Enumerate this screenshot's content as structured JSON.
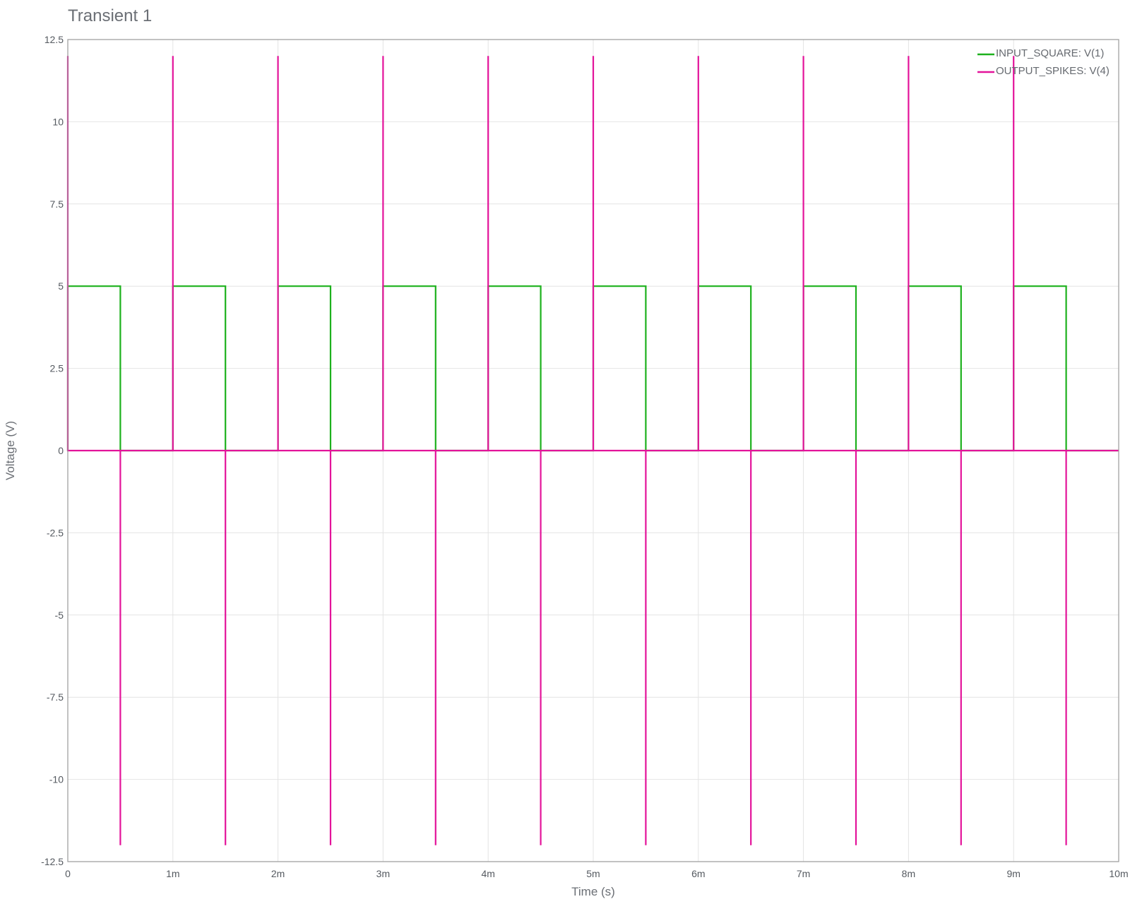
{
  "chart_data": {
    "type": "line",
    "title": "Transient 1",
    "xlabel": "Time (s)",
    "ylabel": "Voltage (V)",
    "xlim": [
      0,
      0.01
    ],
    "ylim": [
      -12.5,
      12.5
    ],
    "grid": true,
    "legend_position": "top-right",
    "x_ticks": [
      0,
      0.001,
      0.002,
      0.003,
      0.004,
      0.005,
      0.006,
      0.007,
      0.008,
      0.009,
      0.01
    ],
    "x_tick_labels": [
      "0",
      "1m",
      "2m",
      "3m",
      "4m",
      "5m",
      "6m",
      "7m",
      "8m",
      "9m",
      "10m"
    ],
    "y_ticks": [
      12.5,
      10,
      7.5,
      5,
      2.5,
      0,
      -2.5,
      -5,
      -7.5,
      -10,
      -12.5
    ],
    "y_tick_labels": [
      "12.5",
      "10",
      "7.5",
      "5",
      "2.5",
      "0",
      "-2.5",
      "-5",
      "-7.5",
      "-10",
      "-12.5"
    ],
    "series": [
      {
        "name": "INPUT_SQUARE: V(1)",
        "color": "#1db11d",
        "x": [
          0,
          0,
          0.0005,
          0.0005,
          0.001,
          0.001,
          0.0015,
          0.0015,
          0.002,
          0.002,
          0.0025,
          0.0025,
          0.003,
          0.003,
          0.0035,
          0.0035,
          0.004,
          0.004,
          0.0045,
          0.0045,
          0.005,
          0.005,
          0.0055,
          0.0055,
          0.006,
          0.006,
          0.0065,
          0.0065,
          0.007,
          0.007,
          0.0075,
          0.0075,
          0.008,
          0.008,
          0.0085,
          0.0085,
          0.009,
          0.009,
          0.0095,
          0.0095,
          0.01
        ],
        "y": [
          0,
          5,
          5,
          0,
          0,
          5,
          5,
          0,
          0,
          5,
          5,
          0,
          0,
          5,
          5,
          0,
          0,
          5,
          5,
          0,
          0,
          5,
          5,
          0,
          0,
          5,
          5,
          0,
          0,
          5,
          5,
          0,
          0,
          5,
          5,
          0,
          0,
          5,
          5,
          0,
          0
        ]
      },
      {
        "name": "OUTPUT_SPIKES: V(4)",
        "color": "#e3139a",
        "x": [
          0,
          0,
          0,
          0.0005,
          0.0005,
          0.0005,
          0.001,
          0.001,
          0.001,
          0.0015,
          0.0015,
          0.0015,
          0.002,
          0.002,
          0.002,
          0.0025,
          0.0025,
          0.0025,
          0.003,
          0.003,
          0.003,
          0.0035,
          0.0035,
          0.0035,
          0.004,
          0.004,
          0.004,
          0.0045,
          0.0045,
          0.0045,
          0.005,
          0.005,
          0.005,
          0.0055,
          0.0055,
          0.0055,
          0.006,
          0.006,
          0.006,
          0.0065,
          0.0065,
          0.0065,
          0.007,
          0.007,
          0.007,
          0.0075,
          0.0075,
          0.0075,
          0.008,
          0.008,
          0.008,
          0.0085,
          0.0085,
          0.0085,
          0.009,
          0.009,
          0.009,
          0.0095,
          0.0095,
          0.0095,
          0.01
        ],
        "y": [
          0,
          12,
          0,
          0,
          -12,
          0,
          0,
          12,
          0,
          0,
          -12,
          0,
          0,
          12,
          0,
          0,
          -12,
          0,
          0,
          12,
          0,
          0,
          -12,
          0,
          0,
          12,
          0,
          0,
          -12,
          0,
          0,
          12,
          0,
          0,
          -12,
          0,
          0,
          12,
          0,
          0,
          -12,
          0,
          0,
          12,
          0,
          0,
          -12,
          0,
          0,
          12,
          0,
          0,
          -12,
          0,
          0,
          12,
          0,
          0,
          -12,
          0,
          0
        ]
      }
    ]
  }
}
